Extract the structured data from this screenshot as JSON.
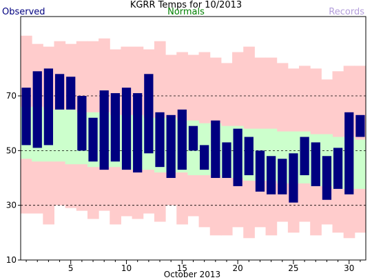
{
  "chart_data": {
    "type": "bar",
    "title": "KGRR Temps for 10/2013",
    "xlabel": "October 2013",
    "ylabel": "",
    "ylim": [
      10,
      99
    ],
    "xlim": [
      0.5,
      31.5
    ],
    "grid": "dashed horizontal at 30, 50, 70",
    "legend_placement": "top",
    "y_ticks": [
      10,
      30,
      50,
      70
    ],
    "x_ticks": [
      5,
      10,
      15,
      20,
      25,
      30
    ],
    "days": [
      1,
      2,
      3,
      4,
      5,
      6,
      7,
      8,
      9,
      10,
      11,
      12,
      13,
      14,
      15,
      16,
      17,
      18,
      19,
      20,
      21,
      22,
      23,
      24,
      25,
      26,
      27,
      28,
      29,
      30,
      31
    ],
    "series": [
      {
        "name": "Observed",
        "color": "#000080",
        "high": [
          73,
          79,
          80,
          78,
          77,
          70,
          62,
          72,
          71,
          73,
          71,
          78,
          64,
          63,
          65,
          59,
          52,
          61,
          53,
          58,
          55,
          50,
          48,
          47,
          49,
          55,
          53,
          48,
          51,
          64,
          63
        ],
        "low": [
          52,
          51,
          52,
          65,
          65,
          50,
          46,
          43,
          46,
          43,
          42,
          49,
          44,
          40,
          43,
          50,
          43,
          40,
          40,
          37,
          41,
          35,
          34,
          34,
          31,
          41,
          37,
          32,
          36,
          34,
          55
        ]
      },
      {
        "name": "Normals",
        "color": "#ccffcc",
        "high": [
          66,
          66,
          65,
          65,
          65,
          64,
          64,
          64,
          63,
          63,
          63,
          62,
          62,
          62,
          61,
          61,
          60,
          60,
          59,
          59,
          58,
          58,
          58,
          57,
          57,
          57,
          56,
          56,
          55,
          55,
          54
        ],
        "low": [
          47,
          46,
          46,
          46,
          45,
          45,
          44,
          44,
          44,
          43,
          43,
          43,
          42,
          42,
          42,
          41,
          41,
          41,
          40,
          40,
          39,
          39,
          39,
          38,
          38,
          38,
          37,
          37,
          36,
          36,
          36
        ]
      },
      {
        "name": "Records",
        "color": "#ffcccc",
        "high": [
          92,
          89,
          88,
          90,
          89,
          90,
          90,
          91,
          87,
          88,
          88,
          87,
          90,
          85,
          86,
          85,
          86,
          84,
          82,
          86,
          88,
          84,
          84,
          82,
          80,
          81,
          80,
          76,
          79,
          81,
          81
        ],
        "low": [
          27,
          27,
          23,
          30,
          29,
          28,
          25,
          28,
          23,
          26,
          25,
          27,
          24,
          30,
          23,
          26,
          22,
          19,
          19,
          22,
          18,
          22,
          19,
          24,
          20,
          24,
          19,
          23,
          20,
          18,
          20
        ]
      }
    ]
  },
  "colors": {
    "observed": "#000080",
    "normals": "#ccffcc",
    "records": "#ffcccc",
    "records_label": "#b39ddb"
  }
}
